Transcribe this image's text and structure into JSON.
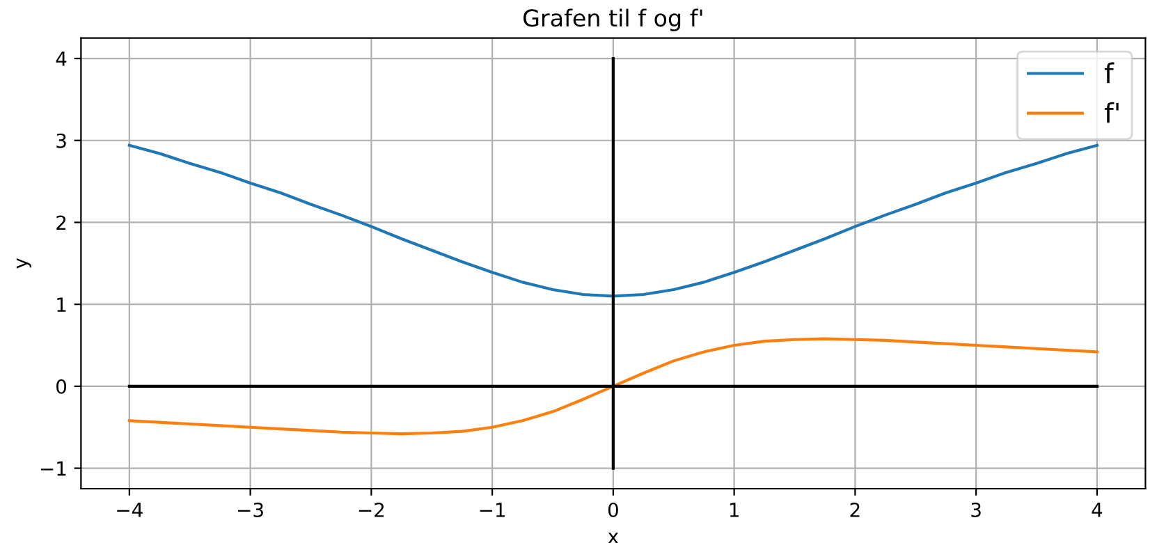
{
  "chart_data": {
    "type": "line",
    "title": "Grafen til f og f'",
    "xlabel": "x",
    "ylabel": "y",
    "x": [
      -4,
      -3.75,
      -3.5,
      -3.25,
      -3,
      -2.75,
      -2.5,
      -2.25,
      -2,
      -1.75,
      -1.5,
      -1.25,
      -1,
      -0.75,
      -0.5,
      -0.25,
      0,
      0.25,
      0.5,
      0.75,
      1,
      1.25,
      1.5,
      1.75,
      2,
      2.25,
      2.5,
      2.75,
      3,
      3.25,
      3.5,
      3.75,
      4
    ],
    "series": [
      {
        "name": "f",
        "color": "#1f77b4",
        "values": [
          2.94,
          2.84,
          2.72,
          2.61,
          2.48,
          2.36,
          2.22,
          2.09,
          1.95,
          1.8,
          1.66,
          1.52,
          1.39,
          1.27,
          1.18,
          1.12,
          1.1,
          1.12,
          1.18,
          1.27,
          1.39,
          1.52,
          1.66,
          1.8,
          1.95,
          2.09,
          2.22,
          2.36,
          2.48,
          2.61,
          2.72,
          2.84,
          2.94
        ]
      },
      {
        "name": "f'",
        "color": "#ff7f0e",
        "values": [
          -0.42,
          -0.44,
          -0.46,
          -0.48,
          -0.5,
          -0.52,
          -0.54,
          -0.56,
          -0.57,
          -0.58,
          -0.57,
          -0.55,
          -0.5,
          -0.42,
          -0.31,
          -0.16,
          0,
          0.16,
          0.31,
          0.42,
          0.5,
          0.55,
          0.57,
          0.58,
          0.57,
          0.56,
          0.54,
          0.52,
          0.5,
          0.48,
          0.46,
          0.44,
          0.42
        ]
      },
      {
        "color": "#000000",
        "x": [
          -4,
          4
        ],
        "values": [
          0,
          0
        ]
      },
      {
        "color": "#000000",
        "x": [
          0,
          0
        ],
        "values": [
          -1,
          4
        ]
      }
    ],
    "xlim": [
      -4.4,
      4.4
    ],
    "ylim": [
      -1.25,
      4.25
    ],
    "xticks": [
      {
        "value": -4,
        "label": "−4"
      },
      {
        "value": -3,
        "label": "−3"
      },
      {
        "value": -2,
        "label": "−2"
      },
      {
        "value": -1,
        "label": "−1"
      },
      0,
      1,
      2,
      3,
      4
    ],
    "yticks": [
      {
        "value": -1,
        "label": "−1"
      },
      0,
      1,
      2,
      3,
      4
    ],
    "grid": true,
    "legend": "top right",
    "marker": "none",
    "line_style": "solid"
  }
}
